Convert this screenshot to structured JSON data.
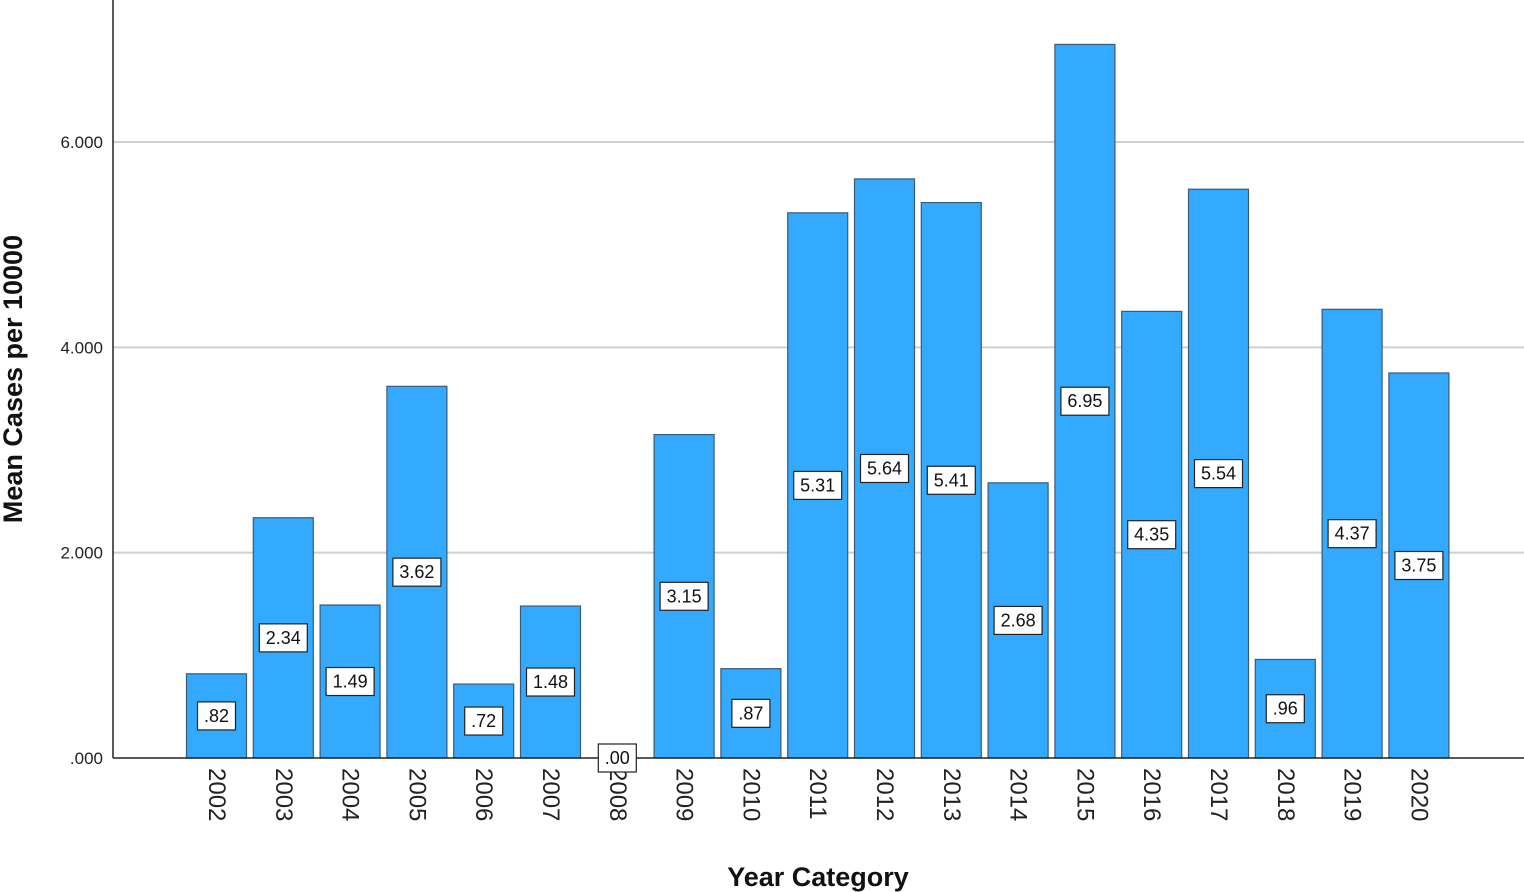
{
  "chart_data": {
    "type": "bar",
    "title": "",
    "xlabel": "Year Category",
    "ylabel": "Mean Cases per 10000",
    "ylim": [
      0,
      7.1
    ],
    "yticks": [
      0,
      2,
      4,
      6
    ],
    "ytick_labels": [
      ".000",
      "2.000",
      "4.000",
      "6.000"
    ],
    "grid": true,
    "bar_color": "#33aaff",
    "categories": [
      "2002",
      "2003",
      "2004",
      "2005",
      "2006",
      "2007",
      "2008",
      "2009",
      "2010",
      "2011",
      "2012",
      "2013",
      "2014",
      "2015",
      "2016",
      "2017",
      "2018",
      "2019",
      "2020"
    ],
    "values": [
      0.82,
      2.34,
      1.49,
      3.62,
      0.72,
      1.48,
      0.0,
      3.15,
      0.87,
      5.31,
      5.64,
      5.41,
      2.68,
      6.95,
      4.35,
      5.54,
      0.96,
      4.37,
      3.75
    ],
    "data_labels": [
      ".82",
      "2.34",
      "1.49",
      "3.62",
      ".72",
      "1.48",
      ".00",
      "3.15",
      ".87",
      "5.31",
      "5.64",
      "5.41",
      "2.68",
      "6.95",
      "4.35",
      "5.54",
      ".96",
      "4.37",
      "3.75"
    ]
  }
}
